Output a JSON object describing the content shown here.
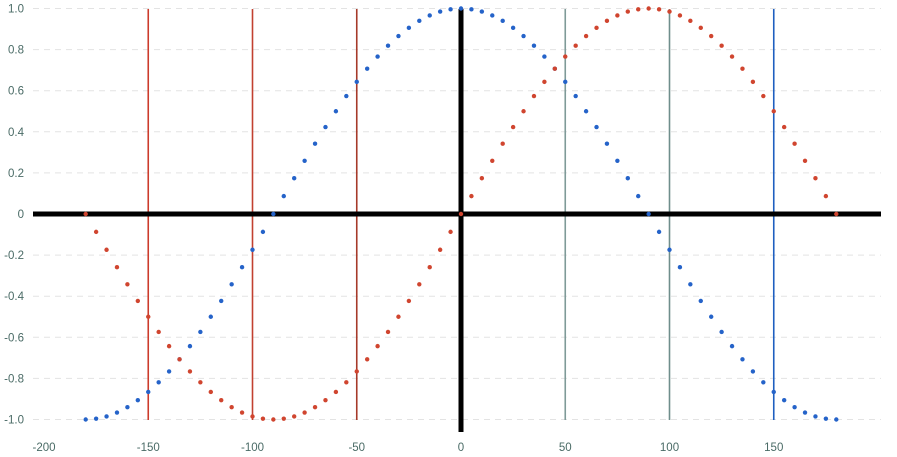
{
  "chart_data": {
    "type": "scatter",
    "title": "",
    "xlabel": "",
    "ylabel": "",
    "xlim": [
      -200,
      200
    ],
    "ylim": [
      -1.0,
      1.0
    ],
    "x_ticks": [
      -200,
      -150,
      -100,
      -50,
      0,
      50,
      100,
      150
    ],
    "x_tick_labels": [
      "-200",
      "-150",
      "-100",
      "-50",
      "0",
      "50",
      "100",
      "150"
    ],
    "y_ticks": [
      -1.0,
      -0.8,
      -0.6,
      -0.4,
      -0.2,
      0,
      0.2,
      0.4,
      0.6,
      0.8,
      1.0
    ],
    "y_tick_labels": [
      "-1.0",
      "-0.8",
      "-0.6",
      "-0.4",
      "-0.2",
      "0",
      "0.2",
      "0.4",
      "0.6",
      "0.8",
      "1.0"
    ],
    "grid": "horizontal dashed",
    "axes_zero_lines": true,
    "series": [
      {
        "color": "#2563c9",
        "x_start": -180,
        "x_step": 5,
        "y": [
          -1.0,
          -0.996,
          -0.985,
          -0.966,
          -0.94,
          -0.906,
          -0.866,
          -0.819,
          -0.766,
          -0.707,
          -0.643,
          -0.574,
          -0.5,
          -0.423,
          -0.342,
          -0.259,
          -0.174,
          -0.087,
          0.0,
          0.087,
          0.174,
          0.259,
          0.342,
          0.423,
          0.5,
          0.574,
          0.643,
          0.707,
          0.766,
          0.819,
          0.866,
          0.906,
          0.94,
          0.966,
          0.985,
          0.996,
          1.0,
          0.996,
          0.985,
          0.966,
          0.94,
          0.906,
          0.866,
          0.819,
          0.766,
          0.707,
          0.643,
          0.574,
          0.5,
          0.423,
          0.342,
          0.259,
          0.174,
          0.087,
          0.0,
          -0.087,
          -0.174,
          -0.259,
          -0.342,
          -0.423,
          -0.5,
          -0.574,
          -0.643,
          -0.707,
          -0.766,
          -0.819,
          -0.866,
          -0.906,
          -0.94,
          -0.966,
          -0.985,
          -0.996,
          -1.0
        ]
      },
      {
        "color": "#d0452f",
        "x_start": -180,
        "x_step": 5,
        "y": [
          0.0,
          -0.087,
          -0.174,
          -0.259,
          -0.342,
          -0.423,
          -0.5,
          -0.574,
          -0.643,
          -0.707,
          -0.766,
          -0.819,
          -0.866,
          -0.906,
          -0.94,
          -0.966,
          -0.985,
          -0.996,
          -1.0,
          -0.996,
          -0.985,
          -0.966,
          -0.94,
          -0.906,
          -0.866,
          -0.819,
          -0.766,
          -0.707,
          -0.643,
          -0.574,
          -0.5,
          -0.423,
          -0.342,
          -0.259,
          -0.174,
          -0.087,
          0.0,
          0.087,
          0.174,
          0.259,
          0.342,
          0.423,
          0.5,
          0.574,
          0.643,
          0.707,
          0.766,
          0.819,
          0.866,
          0.906,
          0.94,
          0.966,
          0.985,
          0.996,
          1.0,
          0.996,
          0.985,
          0.966,
          0.94,
          0.906,
          0.866,
          0.819,
          0.766,
          0.707,
          0.643,
          0.574,
          0.5,
          0.423,
          0.342,
          0.259,
          0.174,
          0.087,
          0.0
        ]
      }
    ],
    "vertical_lines": [
      {
        "x": -150,
        "color": "#cc3b2c"
      },
      {
        "x": -100,
        "color": "#c24030"
      },
      {
        "x": -50,
        "color": "#a63a2a"
      },
      {
        "x": 50,
        "color": "#7f9a98"
      },
      {
        "x": 100,
        "color": "#6f8e8c"
      },
      {
        "x": 150,
        "color": "#1e5fc0"
      }
    ],
    "zero_line_color": "#000000"
  }
}
